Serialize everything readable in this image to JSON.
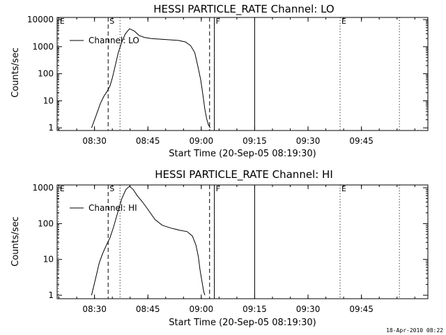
{
  "chart_data": [
    {
      "type": "line",
      "title": "HESSI PARTICLE_RATE Channel: LO",
      "xlabel": "Start Time (20-Sep-05 08:19:30)",
      "ylabel": "Counts/sec",
      "yscale": "log",
      "ylim": [
        0.8,
        12000
      ],
      "xlim": [
        "08:19:30",
        "10:03:40"
      ],
      "xticks": [
        "08:30",
        "08:45",
        "09:00",
        "09:15",
        "09:30",
        "09:45"
      ],
      "yticks": [
        "1",
        "10",
        "100",
        "1000",
        "10000"
      ],
      "grid": false,
      "legend": "top-left",
      "series": [
        {
          "name": "Channel: LO",
          "x": [
            "08:29:10",
            "08:30:30",
            "08:31:40",
            "08:32:40",
            "08:33:30",
            "08:34:20",
            "08:35:00",
            "08:35:50",
            "08:36:40",
            "08:37:40",
            "08:38:40",
            "08:39:50",
            "08:41:10",
            "08:42:30",
            "08:44:00",
            "08:46:00",
            "08:48:30",
            "08:51:00",
            "08:53:30",
            "08:55:30",
            "08:57:00",
            "08:58:10",
            "08:59:00",
            "08:59:50",
            "09:00:30",
            "09:01:00",
            "09:01:30",
            "09:02:00",
            "09:02:30"
          ],
          "y": [
            1,
            3,
            8,
            15,
            22,
            35,
            70,
            200,
            600,
            1500,
            3000,
            4600,
            3800,
            2600,
            2200,
            2000,
            1900,
            1800,
            1700,
            1500,
            1100,
            600,
            200,
            60,
            15,
            5,
            2.2,
            1.3,
            1
          ]
        }
      ],
      "markers": [
        {
          "label": "E",
          "time": "08:19:50",
          "style": "dotted"
        },
        {
          "label": "S",
          "time": "08:33:50",
          "style": "dashed"
        },
        {
          "label": "",
          "time": "08:37:10",
          "style": "dotted"
        },
        {
          "label": "",
          "time": "09:02:20",
          "style": "dashed"
        },
        {
          "label": "F",
          "time": "09:03:40",
          "style": "solid"
        },
        {
          "label": "",
          "time": "09:15:00",
          "style": "solid"
        },
        {
          "label": "E",
          "time": "09:39:00",
          "style": "dotted"
        },
        {
          "label": "",
          "time": "09:55:40",
          "style": "dotted"
        }
      ]
    },
    {
      "type": "line",
      "title": "HESSI PARTICLE_RATE Channel: HI",
      "xlabel": "Start Time (20-Sep-05 08:19:30)",
      "ylabel": "Counts/sec",
      "yscale": "log",
      "ylim": [
        0.8,
        1200
      ],
      "xlim": [
        "08:19:30",
        "10:03:40"
      ],
      "xticks": [
        "08:30",
        "08:45",
        "09:00",
        "09:15",
        "09:30",
        "09:45"
      ],
      "yticks": [
        "1",
        "10",
        "100",
        "1000"
      ],
      "grid": false,
      "legend": "top-left",
      "series": [
        {
          "name": "Channel: HI",
          "x": [
            "08:29:10",
            "08:30:20",
            "08:31:20",
            "08:32:20",
            "08:33:20",
            "08:34:20",
            "08:35:20",
            "08:36:30",
            "08:37:40",
            "08:38:50",
            "08:39:50",
            "08:40:50",
            "08:42:00",
            "08:43:30",
            "08:45:00",
            "08:47:00",
            "08:49:00",
            "08:51:30",
            "08:54:00",
            "08:56:00",
            "08:57:30",
            "08:58:30",
            "08:59:10",
            "08:59:40",
            "09:00:10",
            "09:00:40",
            "09:01:00"
          ],
          "y": [
            1,
            3,
            8,
            15,
            25,
            40,
            80,
            200,
            500,
            900,
            1100,
            900,
            600,
            400,
            250,
            130,
            90,
            75,
            65,
            60,
            45,
            25,
            12,
            5,
            2.5,
            1.3,
            1
          ]
        }
      ],
      "markers": [
        {
          "label": "E",
          "time": "08:19:50",
          "style": "dotted"
        },
        {
          "label": "S",
          "time": "08:33:50",
          "style": "dashed"
        },
        {
          "label": "",
          "time": "08:37:10",
          "style": "dotted"
        },
        {
          "label": "",
          "time": "09:02:20",
          "style": "dashed"
        },
        {
          "label": "F",
          "time": "09:03:40",
          "style": "solid"
        },
        {
          "label": "",
          "time": "09:15:00",
          "style": "solid"
        },
        {
          "label": "E",
          "time": "09:39:00",
          "style": "dotted"
        },
        {
          "label": "",
          "time": "09:55:40",
          "style": "dotted"
        }
      ]
    }
  ],
  "footer": {
    "timestamp": "18-Apr-2010 08:22"
  }
}
